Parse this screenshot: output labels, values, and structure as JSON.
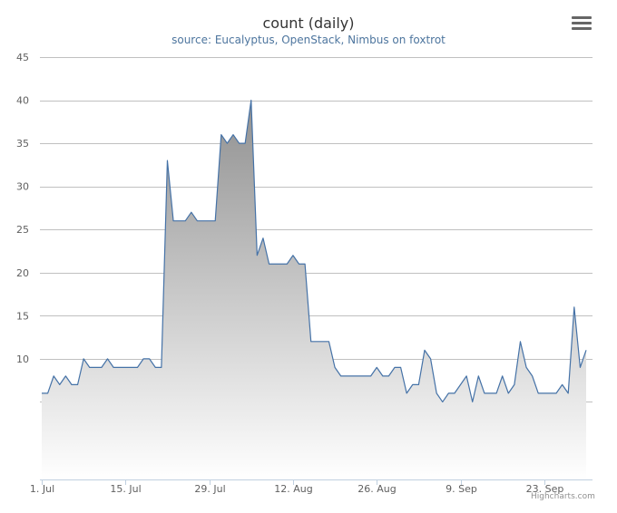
{
  "chart_data": {
    "type": "area",
    "title": "count (daily)",
    "subtitle": "source: Eucalyptus, OpenStack, Nimbus on foxtrot",
    "x_axis": {
      "type": "datetime",
      "tick_labels": [
        "1. Jul",
        "15. Jul",
        "29. Jul",
        "12. Aug",
        "26. Aug",
        "9. Sep",
        "23. Sep"
      ],
      "start": "2013-07-01",
      "end": "2013-09-30"
    },
    "y_axis": {
      "range": [
        -4,
        45
      ],
      "tick_labels": [
        "10",
        "15",
        "20",
        "25",
        "30",
        "35",
        "40",
        "45"
      ],
      "tick_values": [
        10,
        15,
        20,
        25,
        30,
        35,
        40,
        45
      ],
      "gridline_values": [
        5,
        10,
        15,
        20,
        25,
        30,
        35,
        40,
        45
      ]
    },
    "grid": true,
    "legend": "none",
    "series": [
      {
        "x": [
          "2013-07-01",
          "2013-07-02",
          "2013-07-03",
          "2013-07-04",
          "2013-07-05",
          "2013-07-06",
          "2013-07-07",
          "2013-07-08",
          "2013-07-09",
          "2013-07-10",
          "2013-07-11",
          "2013-07-12",
          "2013-07-13",
          "2013-07-14",
          "2013-07-15",
          "2013-07-16",
          "2013-07-17",
          "2013-07-18",
          "2013-07-19",
          "2013-07-20",
          "2013-07-21",
          "2013-07-22",
          "2013-07-23",
          "2013-07-24",
          "2013-07-25",
          "2013-07-26",
          "2013-07-27",
          "2013-07-28",
          "2013-07-29",
          "2013-07-30",
          "2013-07-31",
          "2013-08-01",
          "2013-08-02",
          "2013-08-03",
          "2013-08-04",
          "2013-08-05",
          "2013-08-06",
          "2013-08-07",
          "2013-08-08",
          "2013-08-09",
          "2013-08-10",
          "2013-08-11",
          "2013-08-12",
          "2013-08-13",
          "2013-08-14",
          "2013-08-15",
          "2013-08-16",
          "2013-08-17",
          "2013-08-18",
          "2013-08-19",
          "2013-08-20",
          "2013-08-21",
          "2013-08-22",
          "2013-08-23",
          "2013-08-24",
          "2013-08-25",
          "2013-08-26",
          "2013-08-27",
          "2013-08-28",
          "2013-08-29",
          "2013-08-30",
          "2013-08-31",
          "2013-09-01",
          "2013-09-02",
          "2013-09-03",
          "2013-09-04",
          "2013-09-05",
          "2013-09-06",
          "2013-09-07",
          "2013-09-08",
          "2013-09-09",
          "2013-09-10",
          "2013-09-11",
          "2013-09-12",
          "2013-09-13",
          "2013-09-14",
          "2013-09-15",
          "2013-09-16",
          "2013-09-17",
          "2013-09-18",
          "2013-09-19",
          "2013-09-20",
          "2013-09-21",
          "2013-09-22",
          "2013-09-23",
          "2013-09-24",
          "2013-09-25",
          "2013-09-26",
          "2013-09-27",
          "2013-09-28",
          "2013-09-29",
          "2013-09-30"
        ],
        "y": [
          6,
          6,
          8,
          7,
          8,
          7,
          7,
          10,
          9,
          9,
          9,
          10,
          9,
          9,
          9,
          9,
          9,
          10,
          10,
          9,
          9,
          33,
          26,
          26,
          26,
          27,
          26,
          26,
          26,
          26,
          36,
          35,
          36,
          35,
          35,
          40,
          22,
          24,
          21,
          21,
          21,
          21,
          22,
          21,
          21,
          12,
          12,
          12,
          12,
          9,
          8,
          8,
          8,
          8,
          8,
          8,
          9,
          8,
          8,
          9,
          9,
          6,
          7,
          7,
          11,
          10,
          6,
          5,
          6,
          6,
          7,
          8,
          5,
          8,
          6,
          6,
          6,
          8,
          6,
          7,
          12,
          9,
          8,
          6,
          6,
          6,
          6,
          7,
          6,
          16,
          9,
          11
        ]
      }
    ],
    "colors": {
      "line": "#4572a7",
      "fill_top": "#909090",
      "fill_bottom": "#ffffff",
      "grid": "#c0c0c0",
      "axis": "#c0d0e0"
    }
  },
  "credits": "Highcharts.com",
  "menu_icon": "hamburger-menu-icon"
}
